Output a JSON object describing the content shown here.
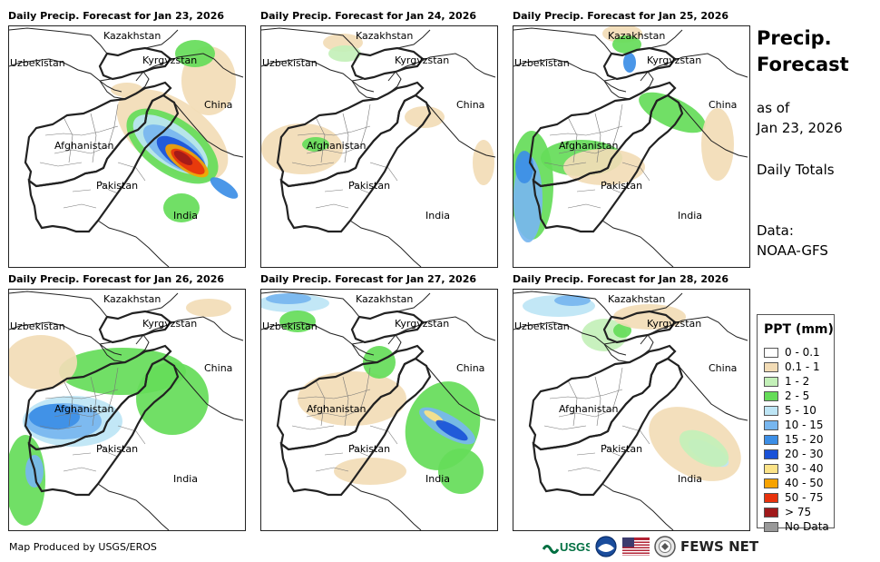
{
  "panels": [
    {
      "title": "Daily Precip. Forecast for Jan 23, 2026"
    },
    {
      "title": "Daily Precip. Forecast for Jan 24, 2026"
    },
    {
      "title": "Daily Precip. Forecast for Jan 25, 2026"
    },
    {
      "title": "Daily Precip. Forecast for Jan 26, 2026"
    },
    {
      "title": "Daily Precip. Forecast for Jan 27, 2026"
    },
    {
      "title": "Daily Precip. Forecast for Jan 28, 2026"
    }
  ],
  "map_labels": {
    "kazakhstan": "Kazakhstan",
    "uzbekistan": "Uzbekistan",
    "kyrgyzstan": "Kyrgyzstan",
    "china": "China",
    "afghanistan": "Afghanistan",
    "pakistan": "Pakistan",
    "india": "India"
  },
  "sidebar": {
    "title_line1": "Precip.",
    "title_line2": "Forecast",
    "asof_line1": "as of",
    "asof_line2": "Jan 23, 2026",
    "daily": "Daily Totals",
    "data_line1": "Data:",
    "data_line2": "NOAA-GFS"
  },
  "legend": {
    "title": "PPT (mm)",
    "items": [
      {
        "label": "0 - 0.1",
        "color": "#ffffff"
      },
      {
        "label": "0.1 - 1",
        "color": "#f2dcb6"
      },
      {
        "label": "1 - 2",
        "color": "#c3f0b8"
      },
      {
        "label": "2 - 5",
        "color": "#65dc59"
      },
      {
        "label": "5 - 10",
        "color": "#bde5f5"
      },
      {
        "label": "10 - 15",
        "color": "#77b6ef"
      },
      {
        "label": "15 - 20",
        "color": "#3c8ee6"
      },
      {
        "label": "20 - 30",
        "color": "#1a52d8"
      },
      {
        "label": "30 - 40",
        "color": "#fbe388"
      },
      {
        "label": "40 - 50",
        "color": "#f7a300"
      },
      {
        "label": "50 - 75",
        "color": "#e8320c"
      },
      {
        "label": "> 75",
        "color": "#a0191a"
      },
      {
        "label": "No Data",
        "color": "#999999"
      }
    ]
  },
  "footer": {
    "credit": "Map Produced by USGS/EROS"
  },
  "logos": {
    "usgs": "USGS",
    "fews": "FEWS NET"
  }
}
